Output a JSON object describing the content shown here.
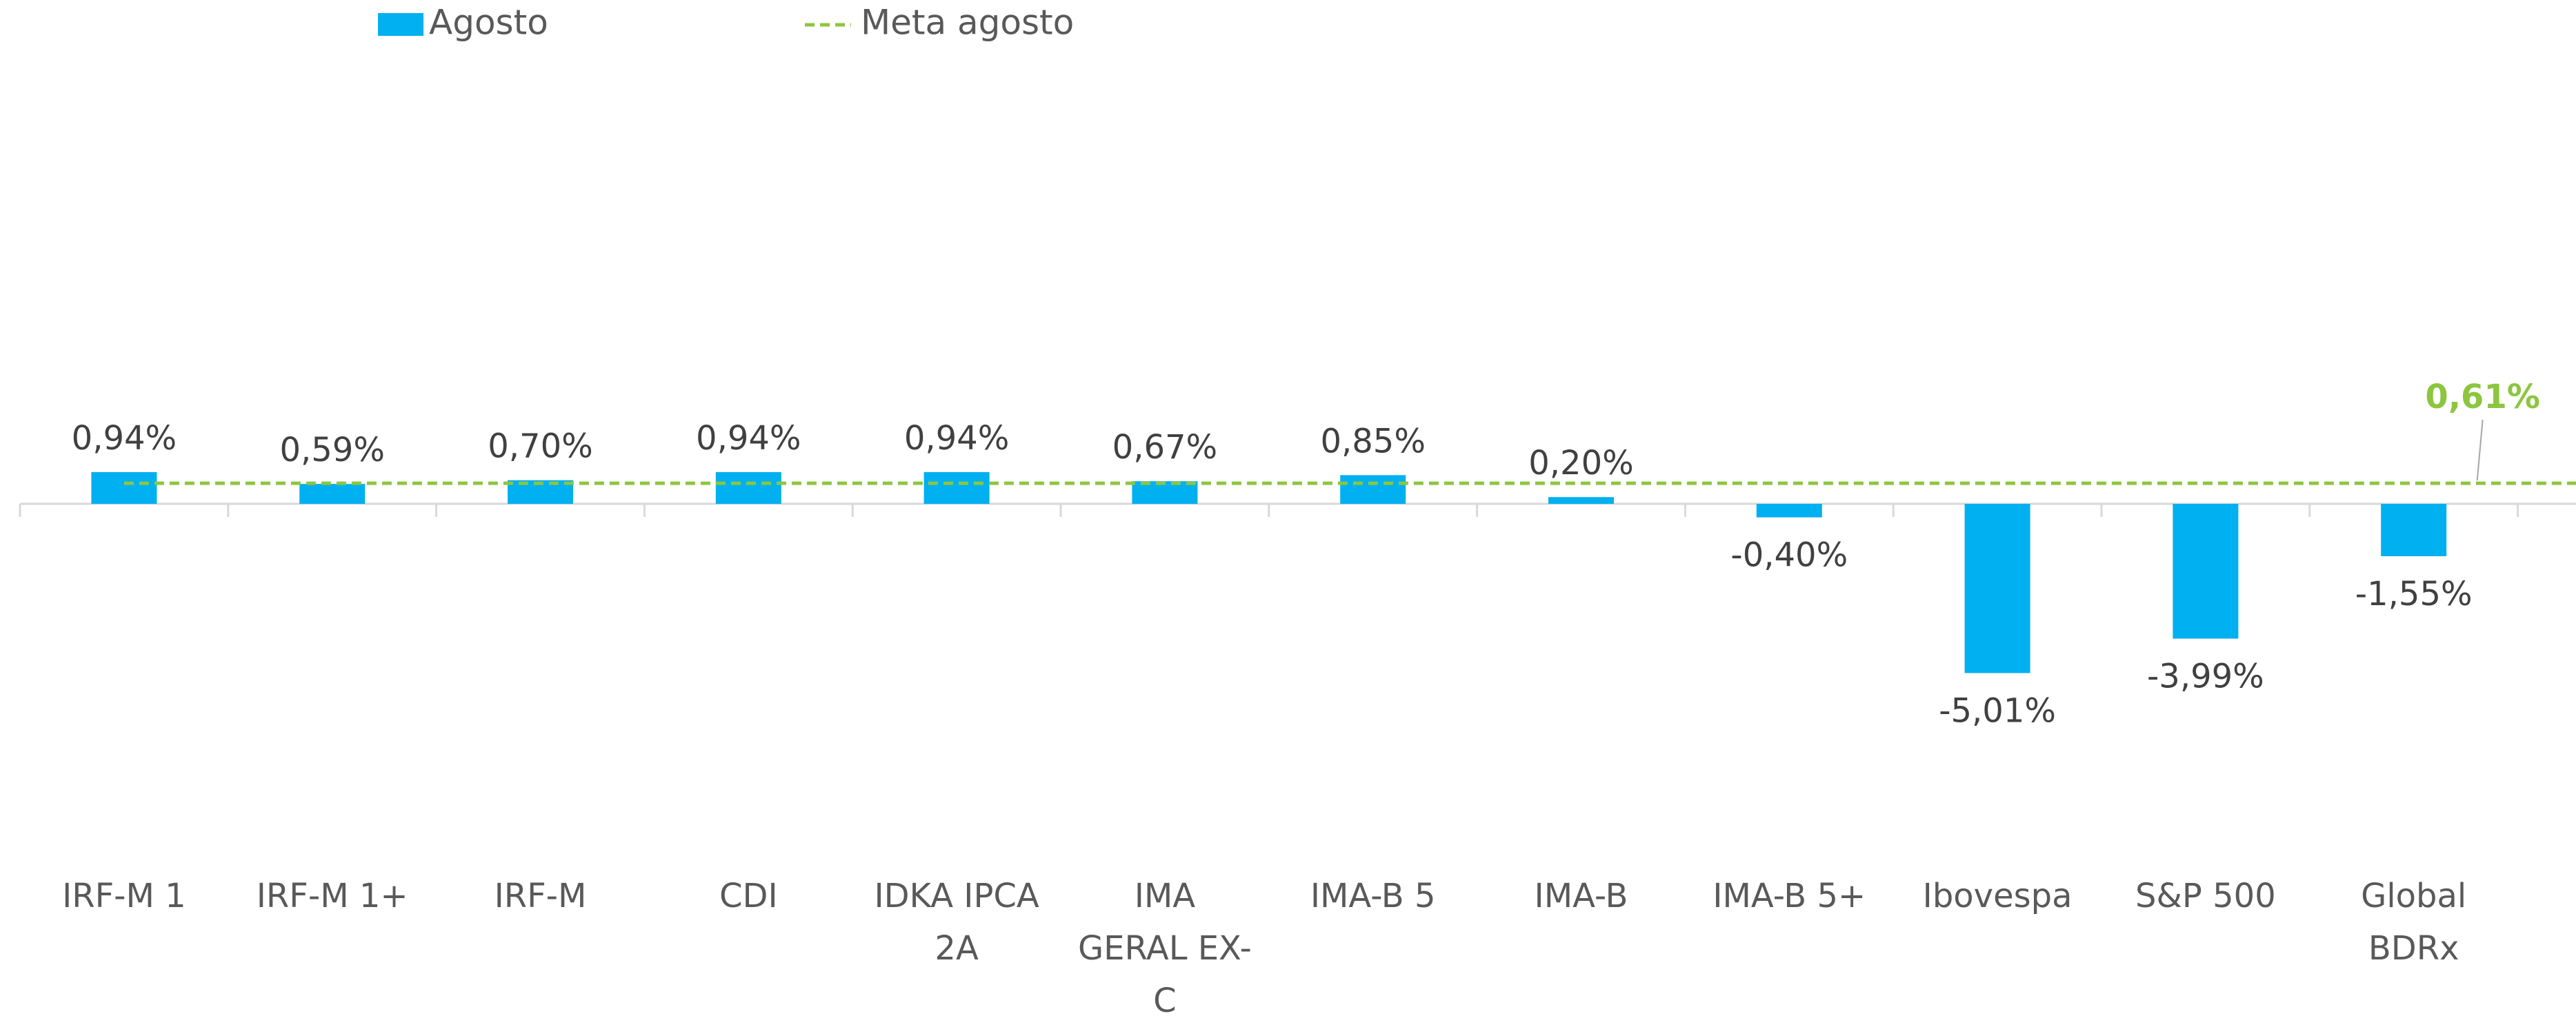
{
  "chart_data": {
    "type": "bar",
    "categories": [
      "IRF-M 1",
      "IRF-M 1+",
      "IRF-M",
      "CDI",
      "IDKA IPCA 2A",
      "IMA GERAL EX-C",
      "IMA-B 5",
      "IMA-B",
      "IMA-B 5+",
      "Ibovespa",
      "S&P 500",
      "Global BDRx"
    ],
    "series": [
      {
        "name": "Agosto",
        "color": "#00b0f0",
        "values": [
          0.94,
          0.59,
          0.7,
          0.94,
          0.94,
          0.67,
          0.85,
          0.2,
          -0.4,
          -5.01,
          -3.99,
          -1.55
        ],
        "value_labels": [
          "0,94%",
          "0,59%",
          "0,70%",
          "0,94%",
          "0,94%",
          "0,67%",
          "0,85%",
          "0,20%",
          "-0,40%",
          "-5,01%",
          "-3,99%",
          "-1,55%"
        ]
      }
    ],
    "target": {
      "name": "Meta agosto",
      "color": "#8cc63f",
      "value": 0.61,
      "value_label": "0,61%"
    },
    "ylim": [
      -10,
      12
    ]
  }
}
